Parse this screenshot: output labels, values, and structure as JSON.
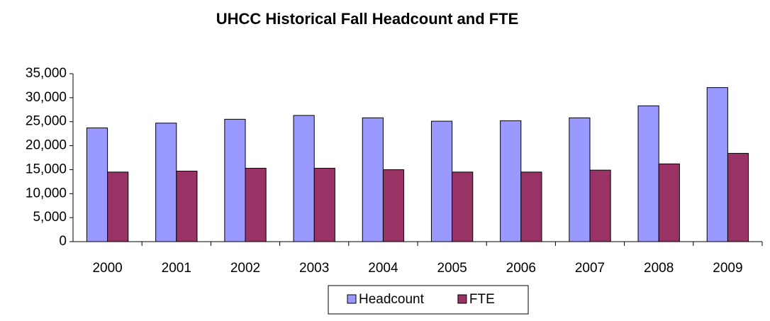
{
  "chart_data": {
    "type": "bar",
    "title": "UHCC Historical Fall Headcount and FTE",
    "categories": [
      "2000",
      "2001",
      "2002",
      "2003",
      "2004",
      "2005",
      "2006",
      "2007",
      "2008",
      "2009"
    ],
    "series": [
      {
        "name": "Headcount",
        "color": "#9999ff",
        "values": [
          23700,
          24700,
          25500,
          26300,
          25800,
          25100,
          25200,
          25800,
          28300,
          32100
        ]
      },
      {
        "name": "FTE",
        "color": "#993366",
        "values": [
          14500,
          14700,
          15300,
          15300,
          15000,
          14500,
          14500,
          14900,
          16200,
          18400
        ]
      }
    ],
    "ylim": [
      0,
      35000
    ],
    "yticks": [
      0,
      {
        "value": 5000,
        "label": "5,000"
      },
      {
        "value": 10000,
        "label": "10,000"
      },
      {
        "value": 15000,
        "label": "15,000"
      },
      {
        "value": 20000,
        "label": "20,000"
      },
      {
        "value": 25000,
        "label": "25,000"
      },
      {
        "value": 30000,
        "label": "30,000"
      },
      {
        "value": 35000,
        "label": "35,000"
      }
    ],
    "grid": false,
    "legend": "bottom"
  }
}
